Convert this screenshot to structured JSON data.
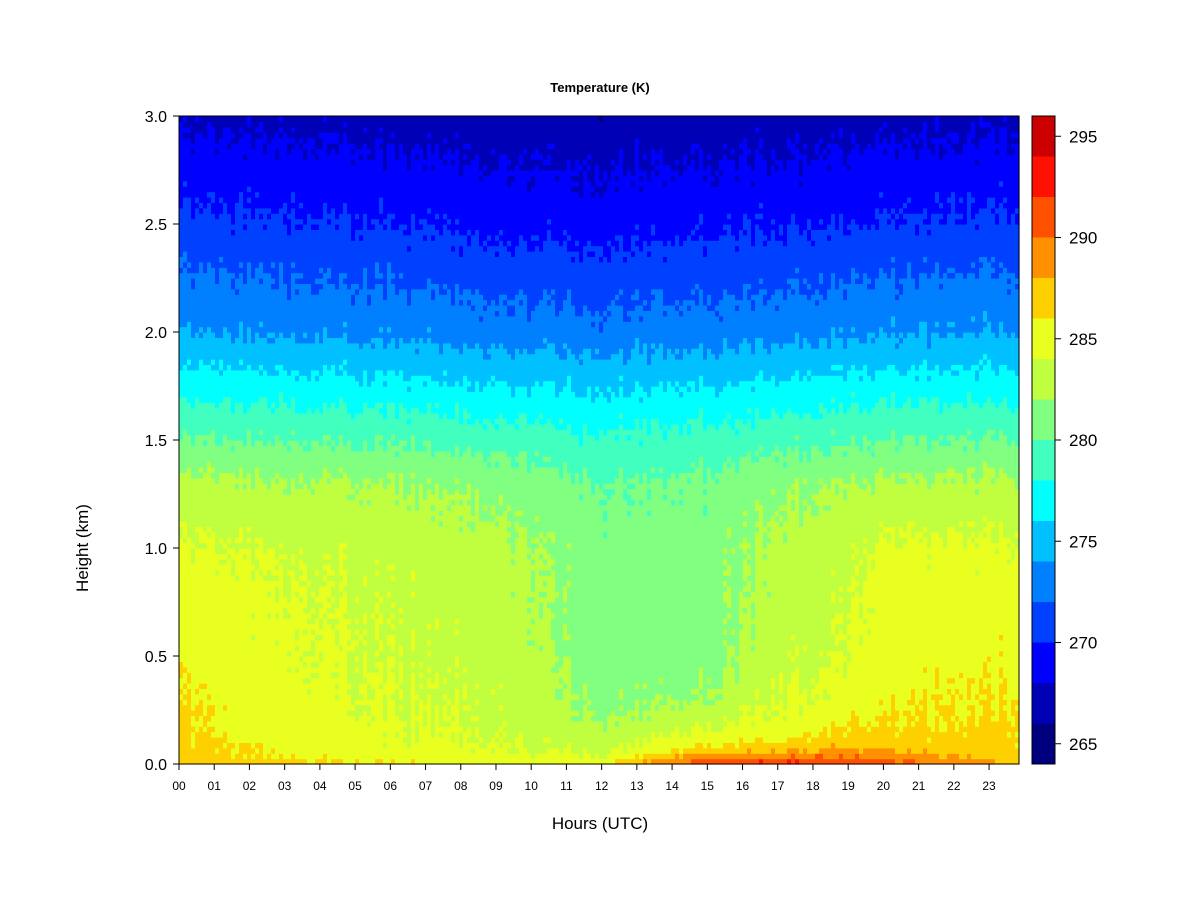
{
  "chart_data": {
    "type": "heatmap",
    "title": "Temperature (K)",
    "xlabel": "Hours (UTC)",
    "ylabel": "Height (km)",
    "x_ticks": [
      "00",
      "01",
      "02",
      "03",
      "04",
      "05",
      "06",
      "07",
      "08",
      "09",
      "10",
      "11",
      "12",
      "13",
      "14",
      "15",
      "16",
      "17",
      "18",
      "19",
      "20",
      "21",
      "22",
      "23"
    ],
    "xlim": [
      0,
      23.85
    ],
    "y_ticks": [
      0.0,
      0.5,
      1.0,
      1.5,
      2.0,
      2.5,
      3.0
    ],
    "y_tick_labels": [
      "0.0",
      "0.5",
      "1.0",
      "1.5",
      "2.0",
      "2.5",
      "3.0"
    ],
    "ylim": [
      0,
      3.0
    ],
    "colorbar": {
      "levels": [
        264,
        266,
        268,
        270,
        272,
        274,
        276,
        278,
        280,
        282,
        284,
        286,
        288,
        290,
        292,
        294,
        296
      ],
      "colors": [
        "#00007f",
        "#0000b7",
        "#0000ff",
        "#0040ff",
        "#0080ff",
        "#00c0ff",
        "#00ffff",
        "#40ffbf",
        "#80ff80",
        "#c0ff40",
        "#e8ff20",
        "#ffd000",
        "#ff9000",
        "#ff5000",
        "#ff1000",
        "#cc0000",
        "#800000"
      ],
      "ticks": [
        265,
        270,
        275,
        280,
        285,
        290,
        295
      ],
      "tick_labels": [
        "265",
        "270",
        "275",
        "280",
        "285",
        "290",
        "295"
      ]
    },
    "temperature_profile": {
      "heights_km": [
        0.0,
        0.05,
        0.1,
        0.2,
        0.3,
        0.5,
        0.8,
        1.0,
        1.3,
        1.6,
        2.0,
        2.5,
        3.0
      ],
      "profiles": [
        {
          "hour": 0,
          "temps": [
            287.5,
            287.0,
            286.5,
            286.2,
            286.0,
            285.5,
            285.0,
            284.3,
            282.5,
            279.0,
            274.0,
            270.5,
            267.5
          ]
        },
        {
          "hour": 3,
          "temps": [
            286.5,
            285.8,
            285.3,
            285.0,
            284.8,
            284.5,
            284.3,
            283.8,
            282.3,
            278.8,
            273.8,
            270.3,
            267.4
          ]
        },
        {
          "hour": 6,
          "temps": [
            286.0,
            285.0,
            284.5,
            284.2,
            284.0,
            283.8,
            283.5,
            283.2,
            282.0,
            278.5,
            273.5,
            270.0,
            267.2
          ]
        },
        {
          "hour": 9,
          "temps": [
            285.5,
            284.3,
            284.0,
            283.8,
            283.6,
            283.3,
            283.0,
            282.8,
            281.5,
            278.0,
            273.0,
            269.5,
            266.8
          ]
        },
        {
          "hour": 12,
          "temps": [
            286.0,
            283.8,
            283.0,
            282.0,
            281.5,
            281.0,
            281.0,
            280.8,
            280.0,
            277.5,
            272.8,
            269.3,
            266.6
          ]
        },
        {
          "hour": 15,
          "temps": [
            292.0,
            288.0,
            285.5,
            283.5,
            282.0,
            281.0,
            280.8,
            281.0,
            280.5,
            277.8,
            273.0,
            269.5,
            266.8
          ]
        },
        {
          "hour": 17,
          "temps": [
            292.5,
            288.5,
            286.0,
            284.5,
            284.0,
            283.5,
            283.0,
            282.8,
            281.5,
            278.2,
            273.3,
            269.8,
            267.0
          ]
        },
        {
          "hour": 18.5,
          "temps": [
            292.5,
            289.0,
            287.0,
            285.5,
            284.5,
            283.8,
            283.3,
            283.0,
            282.0,
            278.5,
            273.5,
            270.0,
            267.1
          ]
        },
        {
          "hour": 20,
          "temps": [
            291.0,
            288.5,
            287.0,
            286.0,
            285.5,
            285.0,
            284.8,
            284.5,
            282.3,
            278.8,
            273.8,
            270.2,
            267.3
          ]
        },
        {
          "hour": 22,
          "temps": [
            289.0,
            287.5,
            286.5,
            286.0,
            285.8,
            285.3,
            284.8,
            284.3,
            282.3,
            278.8,
            273.8,
            270.2,
            267.3
          ]
        },
        {
          "hour": 23.85,
          "temps": [
            287.5,
            287.0,
            286.5,
            286.2,
            286.0,
            285.5,
            285.0,
            284.3,
            282.5,
            279.0,
            274.0,
            270.5,
            267.5
          ]
        }
      ]
    }
  }
}
